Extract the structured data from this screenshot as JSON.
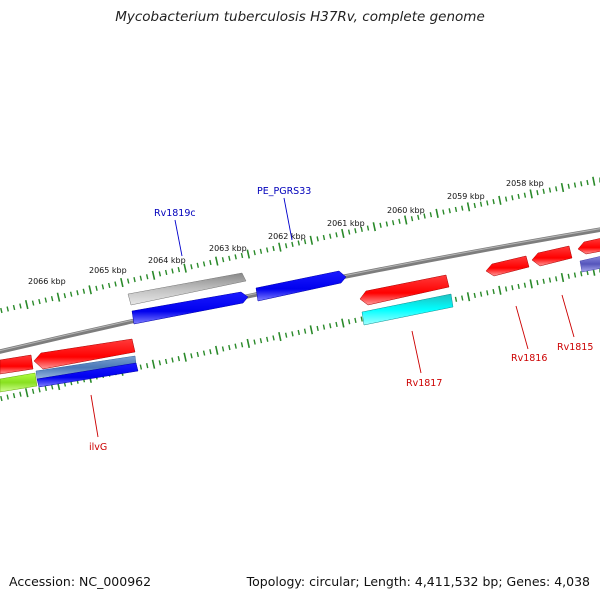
{
  "title": "Mycobacterium tuberculosis H37Rv, complete genome",
  "footer": {
    "accession": "Accession: NC_000962",
    "summary": "Topology: circular; Length: 4,411,532 bp; Genes: 4,038"
  },
  "colors": {
    "backbone": "#808080",
    "tick": "#2a8a2a",
    "label_red": "#cc0000",
    "label_blue": "#0000bb",
    "leader_red": "#cc0000",
    "leader_blue": "#0000cc"
  },
  "scale": {
    "unit": "kbp",
    "tick_labels": [
      {
        "kbp": 2058,
        "text": "2058 kbp"
      },
      {
        "kbp": 2059,
        "text": "2059 kbp"
      },
      {
        "kbp": 2060,
        "text": "2060 kbp"
      },
      {
        "kbp": 2061,
        "text": "2061 kbp"
      },
      {
        "kbp": 2062,
        "text": "2062 kbp"
      },
      {
        "kbp": 2063,
        "text": "2063 kbp"
      },
      {
        "kbp": 2064,
        "text": "2064 kbp"
      },
      {
        "kbp": 2065,
        "text": "2065 kbp"
      },
      {
        "kbp": 2066,
        "text": "2066 kbp"
      }
    ]
  },
  "gene_labels": [
    {
      "name": "Rv1819c",
      "color": "label_blue"
    },
    {
      "name": "PE_PGRS33",
      "color": "label_blue"
    },
    {
      "name": "ilvG",
      "color": "label_red"
    },
    {
      "name": "Rv1817",
      "color": "label_red"
    },
    {
      "name": "Rv1816",
      "color": "label_red"
    },
    {
      "name": "Rv1815",
      "color": "label_red"
    }
  ]
}
